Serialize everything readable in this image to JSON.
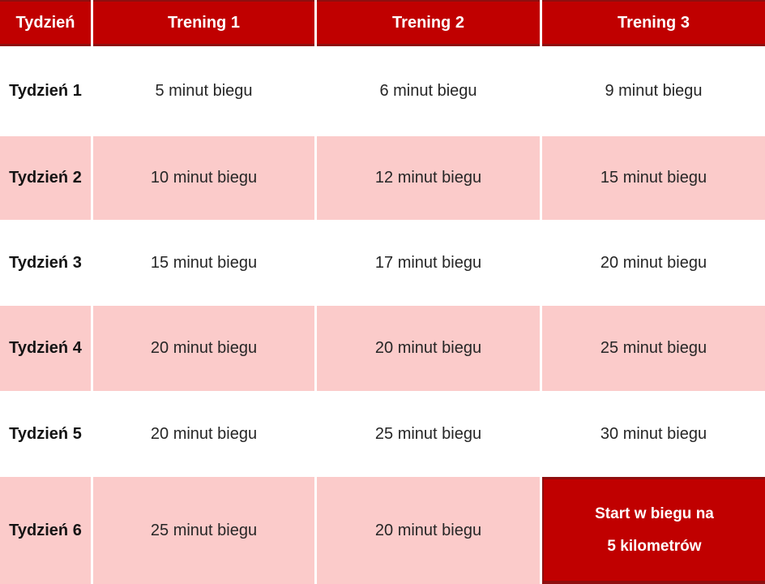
{
  "chart_data": {
    "type": "table",
    "columns": [
      "Tydzień",
      "Trening 1",
      "Trening 2",
      "Trening 3"
    ],
    "rows": [
      [
        "Tydzień 1",
        "5 minut biegu",
        "6 minut biegu",
        "9 minut biegu"
      ],
      [
        "Tydzień 2",
        "10 minut biegu",
        "12 minut biegu",
        "15 minut biegu"
      ],
      [
        "Tydzień 3",
        "15 minut biegu",
        "17 minut biegu",
        "20 minut biegu"
      ],
      [
        "Tydzień 4",
        "20 minut biegu",
        "20 minut biegu",
        "25 minut biegu"
      ],
      [
        "Tydzień 5",
        "20 minut biegu",
        "25 minut biegu",
        "30 minut biegu"
      ],
      [
        "Tydzień 6",
        "25 minut biegu",
        "20 minut biegu",
        "Start w biegu na 5 kilometrów"
      ]
    ],
    "final_cell": {
      "line1": "Start w biegu na",
      "line2": "5 kilometrów"
    },
    "layout_hints": {
      "striping": "rows 2, 4, 6 pink; rows 1, 3, 5 white",
      "highlight_cell": "row 6, column Trening 3"
    },
    "colors": {
      "header_bg": "#c00000",
      "header_text": "#ffffff",
      "row_pink": "#fbcbca",
      "row_white": "#ffffff",
      "body_text": "#262626",
      "week_text": "#141414",
      "dark_border": "#8e0f0f",
      "highlight_bg": "#c00000",
      "highlight_text": "#ffffff"
    }
  }
}
